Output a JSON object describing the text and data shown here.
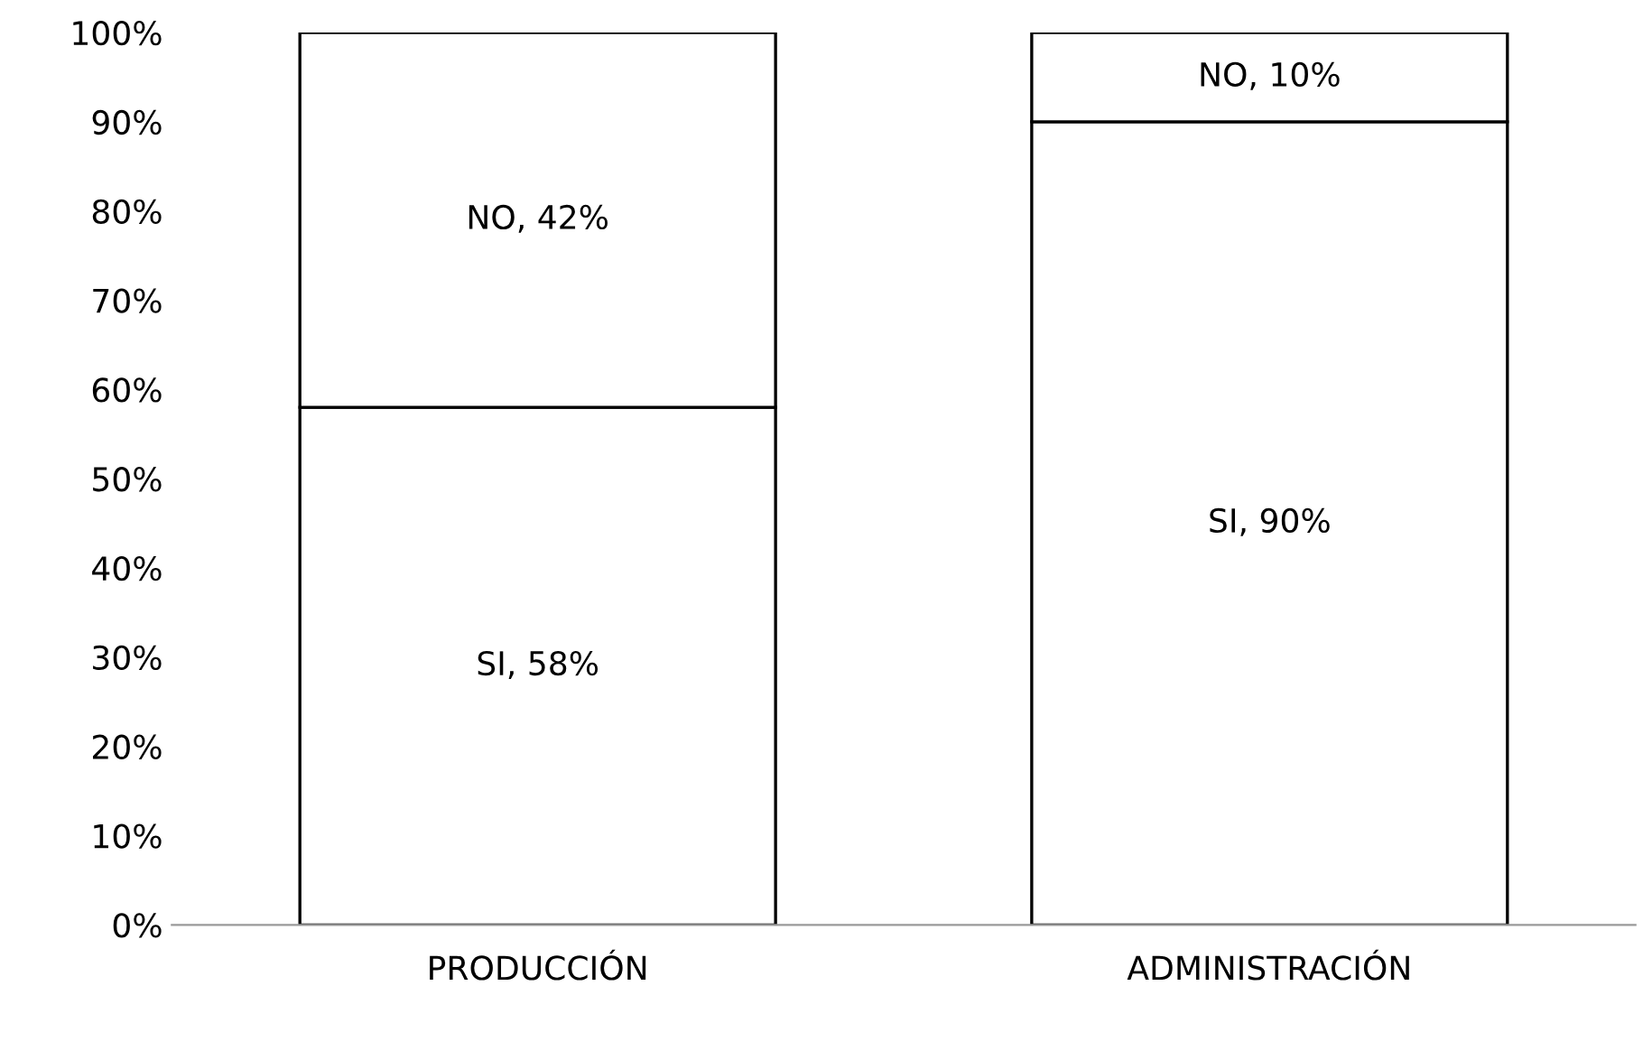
{
  "chart_data": {
    "type": "bar",
    "stacked": true,
    "categories": [
      "PRODUCCIÓN",
      "ADMINISTRACIÓN"
    ],
    "series": [
      {
        "color": "#ffffff",
        "values": [
          58,
          90
        ],
        "value_labels": [
          "SI, 58%",
          "SI, 90%"
        ]
      },
      {
        "color": "#ffffff",
        "values": [
          42,
          10
        ],
        "value_labels": [
          "NO, 42%",
          "NO, 10%"
        ]
      }
    ],
    "ylim": [
      0,
      100
    ],
    "yticks": [
      {
        "value": 0,
        "label": "0%"
      },
      {
        "value": 10,
        "label": "10%"
      },
      {
        "value": 20,
        "label": "20%"
      },
      {
        "value": 30,
        "label": "30%"
      },
      {
        "value": 40,
        "label": "40%"
      },
      {
        "value": 50,
        "label": "50%"
      },
      {
        "value": 60,
        "label": "60%"
      },
      {
        "value": 70,
        "label": "70%"
      },
      {
        "value": 80,
        "label": "80%"
      },
      {
        "value": 90,
        "label": "90%"
      },
      {
        "value": 100,
        "label": "100%"
      }
    ],
    "grid": false,
    "legend": false
  }
}
